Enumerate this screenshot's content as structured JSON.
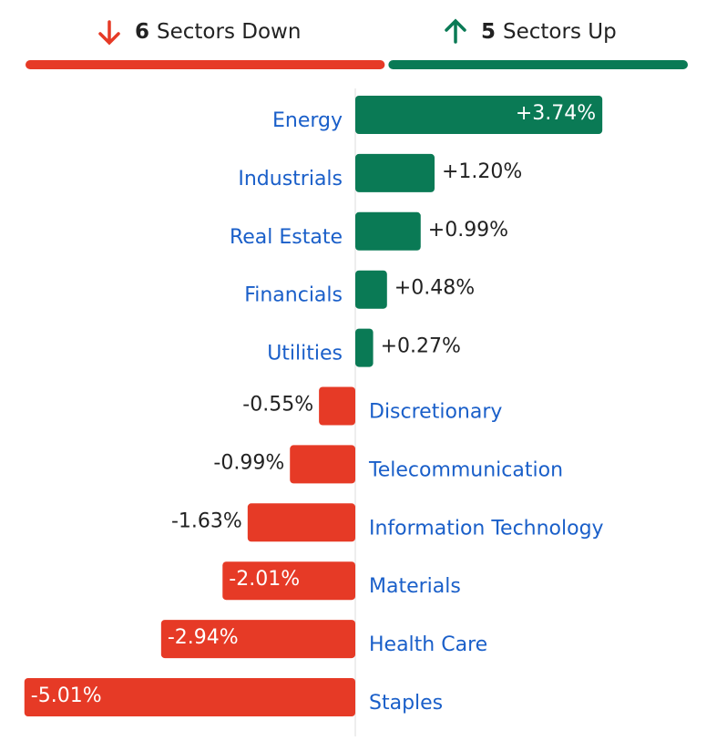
{
  "header": {
    "down": {
      "count": 6,
      "label": "Sectors Down",
      "color": "#e63a26"
    },
    "up": {
      "count": 5,
      "label": "Sectors Up",
      "color": "#0a7a55"
    }
  },
  "chart_data": {
    "type": "diverging-bar",
    "categories": [
      "Energy",
      "Industrials",
      "Real Estate",
      "Financials",
      "Utilities",
      "Discretionary",
      "Telecommunication",
      "Information Technology",
      "Materials",
      "Health Care",
      "Staples"
    ],
    "values": [
      3.74,
      1.2,
      0.99,
      0.48,
      0.27,
      -0.55,
      -0.99,
      -1.63,
      -2.01,
      -2.94,
      -5.01
    ],
    "value_labels": [
      "+3.74%",
      "+1.20%",
      "+0.99%",
      "+0.48%",
      "+0.27%",
      "-0.55%",
      "-0.99%",
      "-1.63%",
      "-2.01%",
      "-2.94%",
      "-5.01%"
    ],
    "positive_color": "#0a7a55",
    "negative_color": "#e63a26",
    "label_color": "#1a5fc9"
  }
}
